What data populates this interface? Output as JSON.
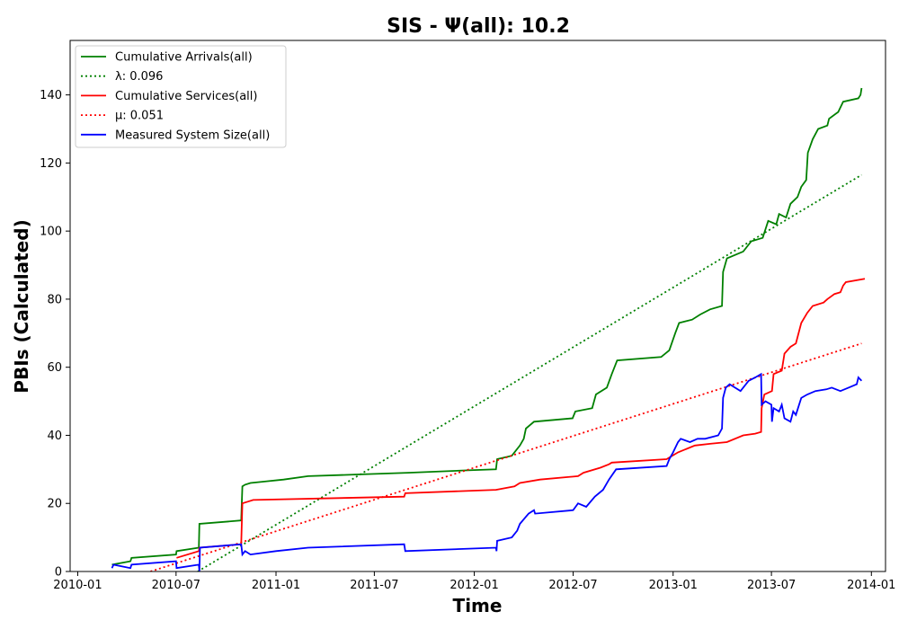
{
  "chart_data": {
    "type": "line",
    "title": "SIS -  Ψ(all): 10.2",
    "xlabel": "Time",
    "ylabel": "PBIs (Calculated)",
    "xlim": [
      "2009-12-18",
      "2014-01-27"
    ],
    "ylim": [
      0,
      156
    ],
    "x_ticks": [
      "2010-01",
      "2010-07",
      "2011-01",
      "2011-07",
      "2012-01",
      "2012-07",
      "2013-01",
      "2013-07",
      "2014-01"
    ],
    "y_ticks": [
      0,
      20,
      40,
      60,
      80,
      100,
      120,
      140
    ],
    "grid": false,
    "legend_position": "top-left",
    "colors": {
      "arrivals": "#008000",
      "services": "#ff0000",
      "system": "#0000ff"
    },
    "series": [
      {
        "name": "Cumulative Arrivals(all)",
        "color": "#008000",
        "style": "solid",
        "points": [
          [
            "2010-03-05",
            2
          ],
          [
            "2010-04-08",
            3
          ],
          [
            "2010-04-10",
            4
          ],
          [
            "2010-07-01",
            5
          ],
          [
            "2010-07-02",
            6
          ],
          [
            "2010-08-12",
            7
          ],
          [
            "2010-08-13",
            14
          ],
          [
            "2010-10-29",
            15
          ],
          [
            "2010-10-31",
            25
          ],
          [
            "2010-11-05",
            25.5
          ],
          [
            "2010-11-15",
            26
          ],
          [
            "2010-12-15",
            26.5
          ],
          [
            "2011-01-15",
            27
          ],
          [
            "2011-03-01",
            28
          ],
          [
            "2011-06-01",
            28.5
          ],
          [
            "2011-09-01",
            29
          ],
          [
            "2011-12-15",
            29.7
          ],
          [
            "2012-02-10",
            30
          ],
          [
            "2012-02-12",
            33
          ],
          [
            "2012-03-10",
            34
          ],
          [
            "2012-03-25",
            37
          ],
          [
            "2012-04-01",
            39
          ],
          [
            "2012-04-05",
            42
          ],
          [
            "2012-04-20",
            44
          ],
          [
            "2012-06-30",
            45
          ],
          [
            "2012-07-05",
            47
          ],
          [
            "2012-08-05",
            48
          ],
          [
            "2012-08-12",
            52
          ],
          [
            "2012-09-01",
            54
          ],
          [
            "2012-09-10",
            58
          ],
          [
            "2012-09-20",
            62
          ],
          [
            "2012-12-10",
            63
          ],
          [
            "2012-12-25",
            65
          ],
          [
            "2013-01-05",
            70
          ],
          [
            "2013-01-12",
            73
          ],
          [
            "2013-02-05",
            74
          ],
          [
            "2013-02-20",
            75.5
          ],
          [
            "2013-03-10",
            77
          ],
          [
            "2013-04-01",
            78
          ],
          [
            "2013-04-03",
            88
          ],
          [
            "2013-04-10",
            92
          ],
          [
            "2013-05-10",
            94
          ],
          [
            "2013-05-25",
            97
          ],
          [
            "2013-06-15",
            98
          ],
          [
            "2013-06-25",
            103
          ],
          [
            "2013-07-10",
            102
          ],
          [
            "2013-07-15",
            105
          ],
          [
            "2013-07-28",
            104
          ],
          [
            "2013-08-05",
            108
          ],
          [
            "2013-08-18",
            110
          ],
          [
            "2013-08-25",
            113
          ],
          [
            "2013-09-03",
            115
          ],
          [
            "2013-09-06",
            123
          ],
          [
            "2013-09-15",
            127
          ],
          [
            "2013-09-25",
            130
          ],
          [
            "2013-10-12",
            131
          ],
          [
            "2013-10-15",
            133
          ],
          [
            "2013-11-01",
            135
          ],
          [
            "2013-11-10",
            138
          ],
          [
            "2013-12-08",
            139
          ],
          [
            "2013-12-12",
            140
          ],
          [
            "2013-12-14",
            142
          ]
        ]
      },
      {
        "name": "λ: 0.096",
        "color": "#008000",
        "style": "dotted",
        "points": [
          [
            "2010-08-10",
            0
          ],
          [
            "2013-12-14",
            116.5
          ]
        ]
      },
      {
        "name": "Cumulative Services(all)",
        "color": "#ff0000",
        "style": "solid",
        "points": [
          [
            "2010-07-02",
            4
          ],
          [
            "2010-08-12",
            6
          ],
          [
            "2010-08-13",
            7
          ],
          [
            "2010-10-29",
            8
          ],
          [
            "2010-10-31",
            20
          ],
          [
            "2010-11-10",
            20.5
          ],
          [
            "2010-11-20",
            21
          ],
          [
            "2011-08-25",
            22
          ],
          [
            "2011-08-27",
            23
          ],
          [
            "2012-02-10",
            24
          ],
          [
            "2012-03-15",
            25
          ],
          [
            "2012-03-25",
            26
          ],
          [
            "2012-05-01",
            27
          ],
          [
            "2012-07-10",
            28
          ],
          [
            "2012-07-20",
            29
          ],
          [
            "2012-08-20",
            30.5
          ],
          [
            "2012-09-05",
            31.5
          ],
          [
            "2012-09-10",
            32
          ],
          [
            "2012-12-20",
            33
          ],
          [
            "2013-01-10",
            35
          ],
          [
            "2013-02-10",
            37
          ],
          [
            "2013-03-10",
            37.5
          ],
          [
            "2013-04-10",
            38
          ],
          [
            "2013-05-10",
            40
          ],
          [
            "2013-06-01",
            40.5
          ],
          [
            "2013-06-12",
            41
          ],
          [
            "2013-06-13",
            48
          ],
          [
            "2013-06-18",
            52
          ],
          [
            "2013-07-02",
            53
          ],
          [
            "2013-07-05",
            58
          ],
          [
            "2013-07-20",
            59
          ],
          [
            "2013-07-25",
            64
          ],
          [
            "2013-08-05",
            66
          ],
          [
            "2013-08-15",
            67
          ],
          [
            "2013-08-25",
            73
          ],
          [
            "2013-09-05",
            76
          ],
          [
            "2013-09-15",
            78
          ],
          [
            "2013-10-05",
            79
          ],
          [
            "2013-10-12",
            80
          ],
          [
            "2013-10-25",
            81.5
          ],
          [
            "2013-11-05",
            82
          ],
          [
            "2013-11-10",
            84
          ],
          [
            "2013-11-15",
            85
          ],
          [
            "2013-12-20",
            86
          ]
        ]
      },
      {
        "name": "μ: 0.051",
        "color": "#ff0000",
        "style": "dotted",
        "points": [
          [
            "2010-05-15",
            0
          ],
          [
            "2013-12-14",
            67
          ]
        ]
      },
      {
        "name": "Measured System Size(all)",
        "color": "#0000ff",
        "style": "solid",
        "points": [
          [
            "2010-03-05",
            1
          ],
          [
            "2010-03-08",
            2
          ],
          [
            "2010-04-08",
            1
          ],
          [
            "2010-04-10",
            2
          ],
          [
            "2010-07-01",
            3
          ],
          [
            "2010-07-02",
            1
          ],
          [
            "2010-08-12",
            2
          ],
          [
            "2010-08-13",
            0
          ],
          [
            "2010-08-14",
            7
          ],
          [
            "2010-10-29",
            8
          ],
          [
            "2010-10-31",
            5
          ],
          [
            "2010-11-05",
            6
          ],
          [
            "2010-11-15",
            5
          ],
          [
            "2011-01-01",
            6
          ],
          [
            "2011-03-01",
            7
          ],
          [
            "2011-08-25",
            8
          ],
          [
            "2011-08-27",
            6
          ],
          [
            "2012-02-10",
            7
          ],
          [
            "2012-02-11",
            6
          ],
          [
            "2012-02-12",
            9
          ],
          [
            "2012-03-10",
            10
          ],
          [
            "2012-03-20",
            12
          ],
          [
            "2012-03-25",
            14
          ],
          [
            "2012-04-10",
            17
          ],
          [
            "2012-04-20",
            18
          ],
          [
            "2012-04-22",
            17
          ],
          [
            "2012-07-01",
            18
          ],
          [
            "2012-07-10",
            20
          ],
          [
            "2012-07-25",
            19
          ],
          [
            "2012-08-10",
            22
          ],
          [
            "2012-08-25",
            24
          ],
          [
            "2012-09-05",
            27
          ],
          [
            "2012-09-18",
            30
          ],
          [
            "2012-12-20",
            31
          ],
          [
            "2012-12-25",
            33
          ],
          [
            "2013-01-01",
            35
          ],
          [
            "2013-01-10",
            38
          ],
          [
            "2013-01-15",
            39
          ],
          [
            "2013-02-01",
            38
          ],
          [
            "2013-02-15",
            39
          ],
          [
            "2013-03-01",
            39
          ],
          [
            "2013-03-25",
            40
          ],
          [
            "2013-04-01",
            42
          ],
          [
            "2013-04-03",
            51
          ],
          [
            "2013-04-08",
            54
          ],
          [
            "2013-04-15",
            55
          ],
          [
            "2013-04-25",
            54
          ],
          [
            "2013-05-05",
            53
          ],
          [
            "2013-05-20",
            56
          ],
          [
            "2013-06-01",
            57
          ],
          [
            "2013-06-12",
            58
          ],
          [
            "2013-06-13",
            49
          ],
          [
            "2013-06-20",
            50
          ],
          [
            "2013-07-01",
            49
          ],
          [
            "2013-07-02",
            44
          ],
          [
            "2013-07-05",
            48
          ],
          [
            "2013-07-15",
            47
          ],
          [
            "2013-07-20",
            49
          ],
          [
            "2013-07-25",
            45
          ],
          [
            "2013-08-05",
            44
          ],
          [
            "2013-08-10",
            47
          ],
          [
            "2013-08-15",
            46
          ],
          [
            "2013-08-25",
            51
          ],
          [
            "2013-09-05",
            52
          ],
          [
            "2013-09-20",
            53
          ],
          [
            "2013-10-10",
            53.5
          ],
          [
            "2013-10-20",
            54
          ],
          [
            "2013-11-05",
            53
          ],
          [
            "2013-11-20",
            54
          ],
          [
            "2013-12-05",
            55
          ],
          [
            "2013-12-08",
            57
          ],
          [
            "2013-12-14",
            56
          ]
        ]
      }
    ]
  }
}
